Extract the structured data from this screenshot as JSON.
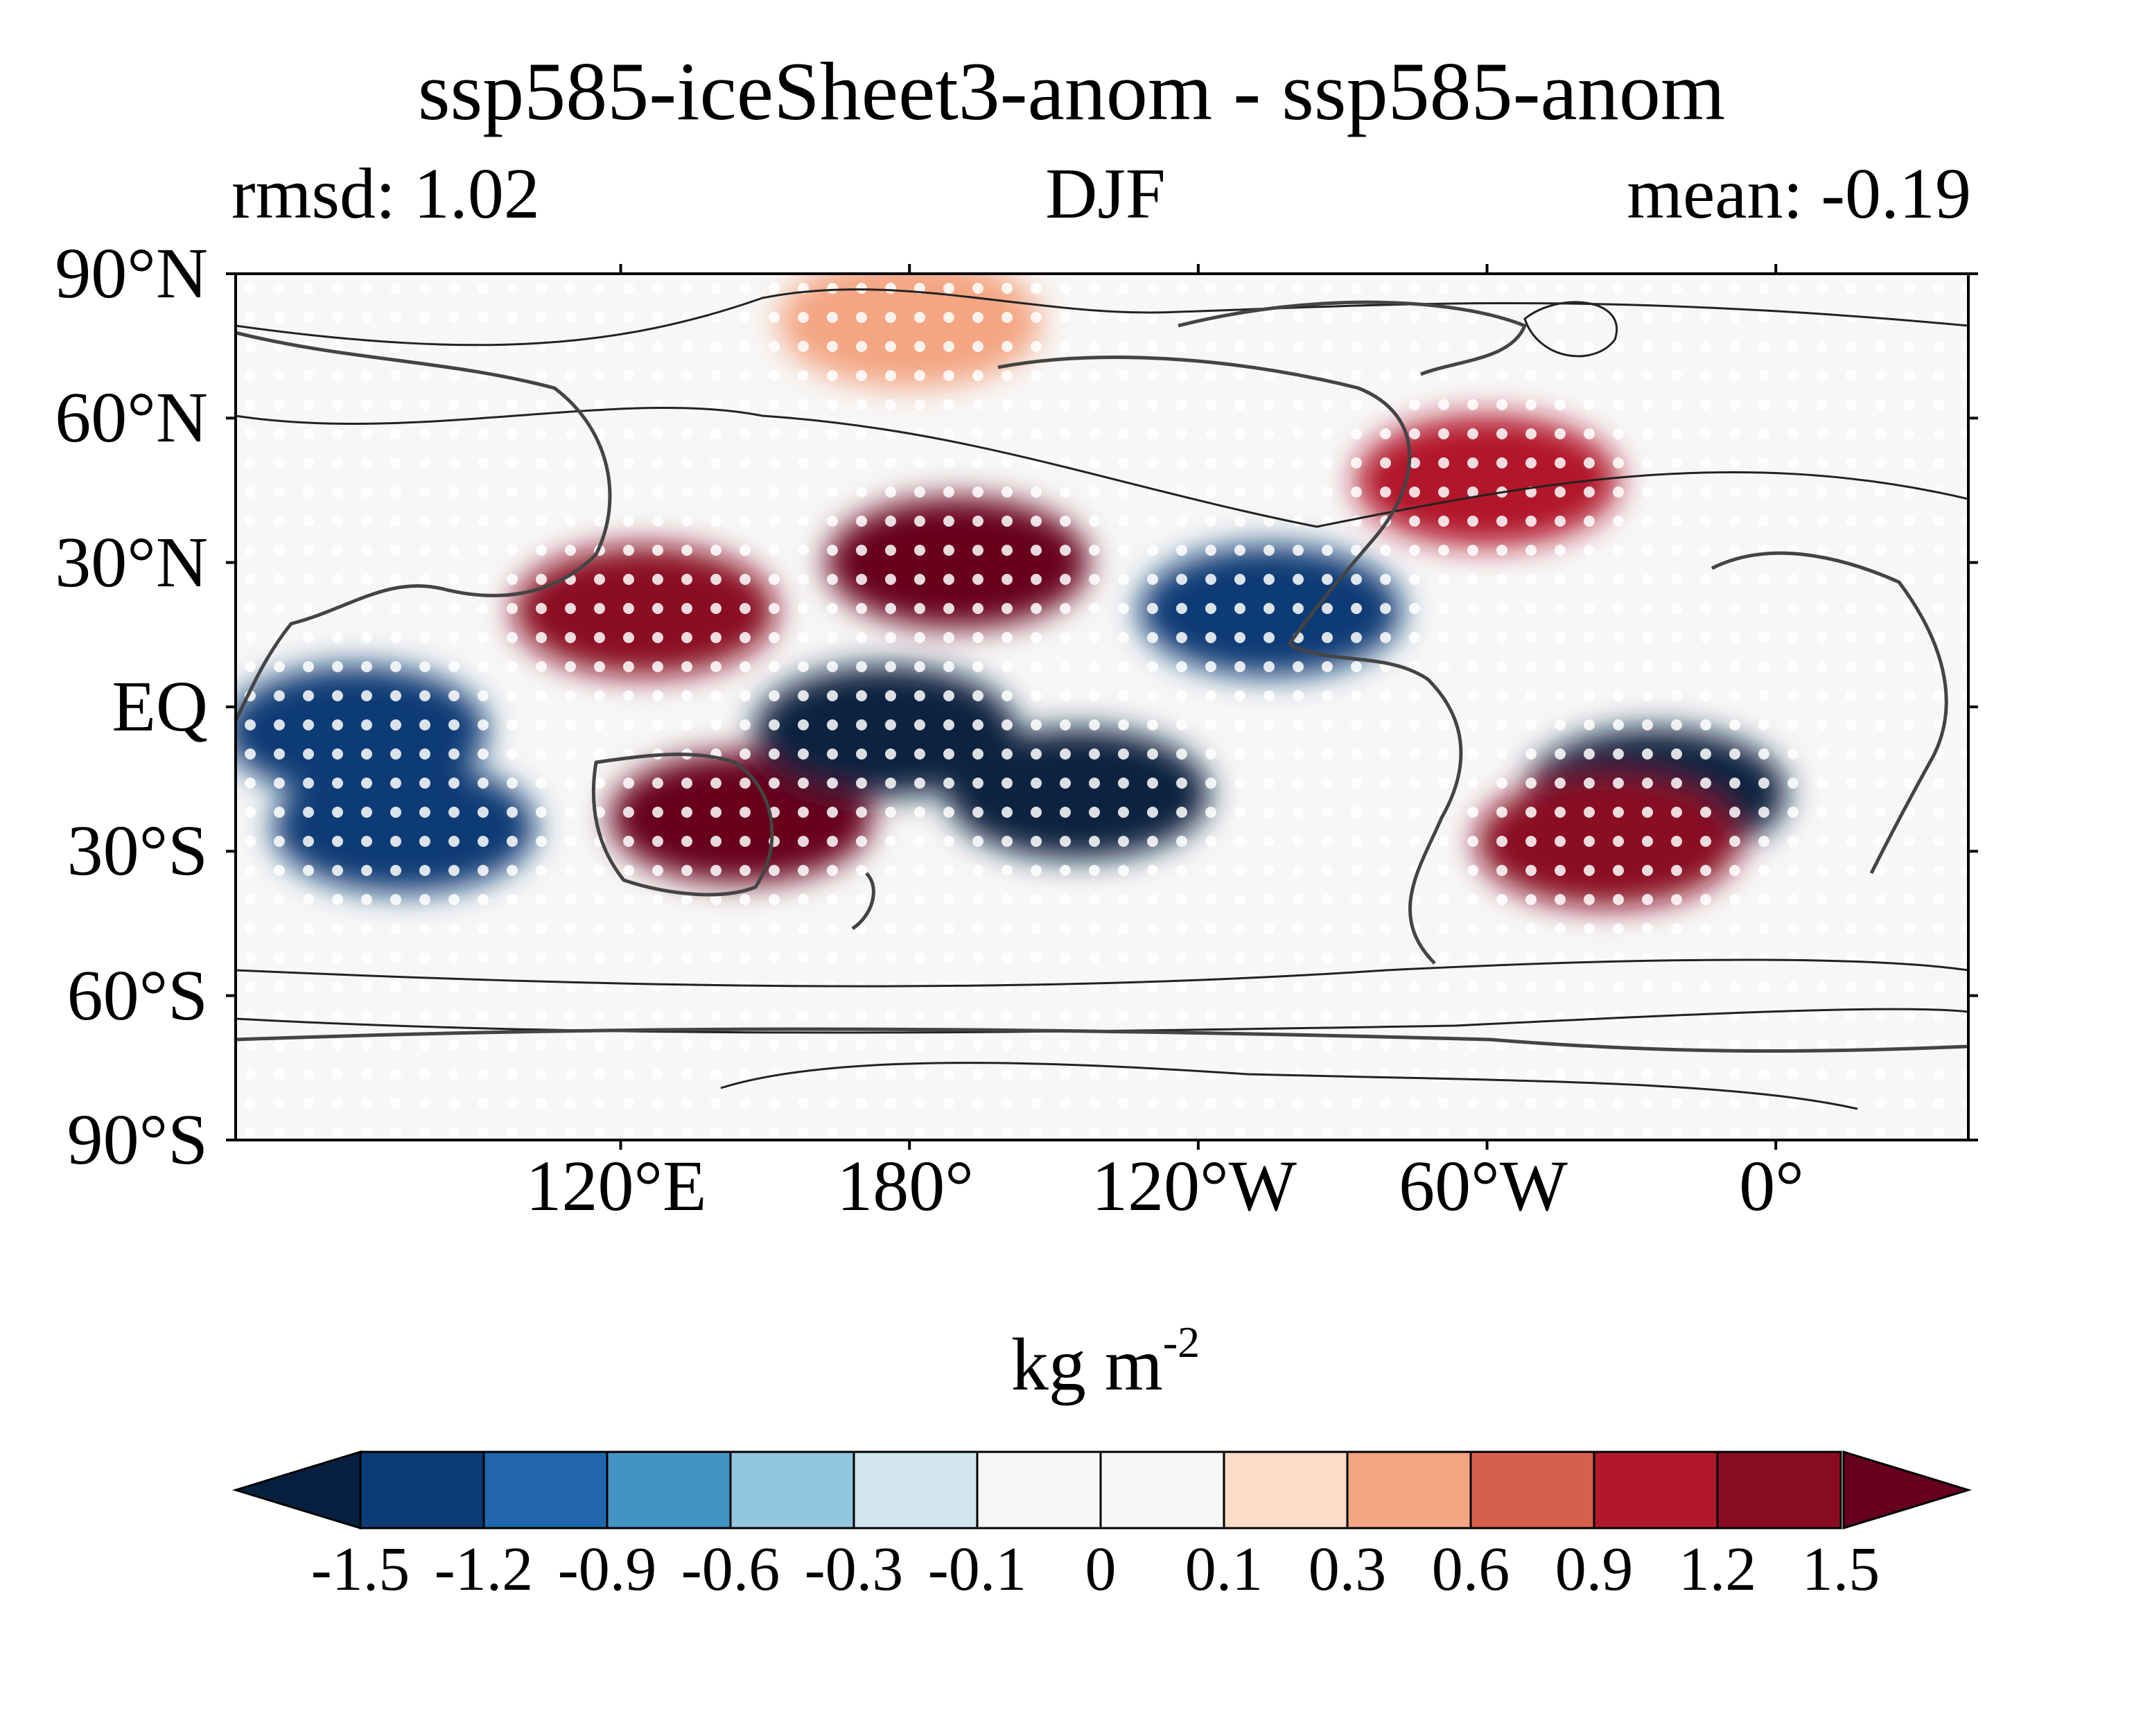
{
  "title": "ssp585-iceSheet3-anom - ssp585-anom",
  "left_subtitle": "rmsd: 1.02",
  "center_subtitle": "DJF",
  "right_subtitle": "mean: -0.19",
  "units": {
    "base": "kg m",
    "exponent": "-2"
  },
  "lat_ticks": [
    "90°N",
    "60°N",
    "30°N",
    "EQ",
    "30°S",
    "60°S",
    "90°S"
  ],
  "lon_ticks": [
    "120°E",
    "180°",
    "120°W",
    "60°W",
    "0°"
  ],
  "colorbar": {
    "levels": [
      "-1.5",
      "-1.2",
      "-0.9",
      "-0.6",
      "-0.3",
      "-0.1",
      "0",
      "0.1",
      "0.3",
      "0.6",
      "0.9",
      "1.2",
      "1.5"
    ],
    "colors": [
      "#08203f",
      "#0c3a74",
      "#2166ac",
      "#4393c3",
      "#92c5de",
      "#d1e5f0",
      "#f7f7f7",
      "#f7f7f7",
      "#fddbc7",
      "#f4a582",
      "#d6604d",
      "#b2182b",
      "#8a0c23",
      "#67001f"
    ],
    "extend": "both"
  },
  "chart_data": {
    "type": "heatmap",
    "title": "ssp585-iceSheet3-anom - ssp585-anom",
    "projection": "equirectangular, central longitude 180°",
    "xlim": [
      40,
      400
    ],
    "ylim": [
      -90,
      90
    ],
    "colorbar_units": "kg m-2",
    "stippling": "white dots mark significant regions",
    "contours": "black line contours overlay",
    "anomaly_blobs": [
      {
        "lon": 145,
        "lat": -23,
        "value": 1.6
      },
      {
        "lon": 125,
        "lat": 20,
        "value": 1.3
      },
      {
        "lon": 190,
        "lat": 30,
        "value": 1.5
      },
      {
        "lon": 175,
        "lat": -5,
        "value": -1.6
      },
      {
        "lon": 215,
        "lat": -18,
        "value": -1.6
      },
      {
        "lon": 65,
        "lat": -5,
        "value": -1.5
      },
      {
        "lon": 75,
        "lat": -25,
        "value": -1.4
      },
      {
        "lon": 255,
        "lat": 20,
        "value": -1.4
      },
      {
        "lon": 335,
        "lat": -18,
        "value": -1.6
      },
      {
        "lon": 325,
        "lat": -28,
        "value": 1.3
      },
      {
        "lon": 300,
        "lat": 47,
        "value": 1.1
      },
      {
        "lon": 180,
        "lat": 80,
        "value": 0.5
      }
    ]
  }
}
